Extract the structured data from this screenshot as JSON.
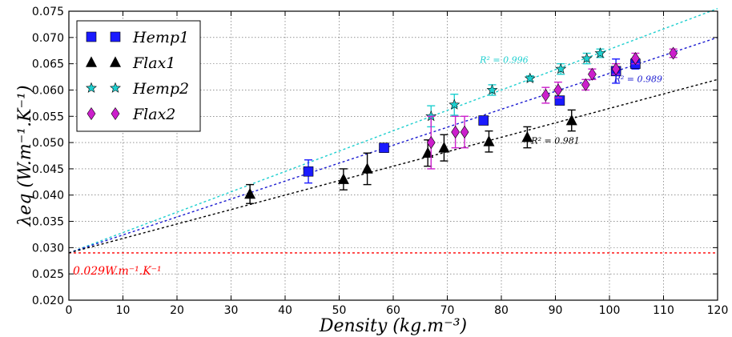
{
  "chart_data": {
    "type": "scatter",
    "xlabel": "Density (kg.m⁻³)",
    "ylabel": "λeq (W.m⁻¹.K⁻¹)",
    "xlim": [
      0,
      120
    ],
    "ylim": [
      0.02,
      0.075
    ],
    "x_ticks": [
      "0",
      "10",
      "20",
      "30",
      "40",
      "50",
      "60",
      "70",
      "80",
      "90",
      "100",
      "110",
      "120"
    ],
    "y_ticks": [
      "0.020",
      "0.025",
      "0.030",
      "0.035",
      "0.040",
      "0.045",
      "0.050",
      "0.055",
      "0.060",
      "0.065",
      "0.070",
      "0.075"
    ],
    "grid": true,
    "legend_position": "top-left",
    "series": [
      {
        "name": "Hemp1",
        "marker": "square",
        "color": "#1a1aff",
        "points": [
          {
            "x": 44.3,
            "y": 0.0445,
            "err": 0.0022
          },
          {
            "x": 58.3,
            "y": 0.049,
            "err": 0.0005
          },
          {
            "x": 76.7,
            "y": 0.0542,
            "err": 0.0008
          },
          {
            "x": 90.8,
            "y": 0.058,
            "err": 0.0008
          },
          {
            "x": 101.2,
            "y": 0.0636,
            "err": 0.0023
          },
          {
            "x": 104.8,
            "y": 0.065,
            "err": 0.001
          }
        ]
      },
      {
        "name": "Flax1",
        "marker": "triangle",
        "color": "#000000",
        "points": [
          {
            "x": 33.5,
            "y": 0.0402,
            "err": 0.0018
          },
          {
            "x": 50.8,
            "y": 0.043,
            "err": 0.002
          },
          {
            "x": 55.2,
            "y": 0.045,
            "err": 0.003
          },
          {
            "x": 66.4,
            "y": 0.048,
            "err": 0.0025
          },
          {
            "x": 69.4,
            "y": 0.049,
            "err": 0.0025
          },
          {
            "x": 77.7,
            "y": 0.0502,
            "err": 0.002
          },
          {
            "x": 84.8,
            "y": 0.051,
            "err": 0.002
          },
          {
            "x": 93.0,
            "y": 0.0542,
            "err": 0.002
          }
        ]
      },
      {
        "name": "Hemp2",
        "marker": "star",
        "color": "#1ecfcf",
        "points": [
          {
            "x": 67.0,
            "y": 0.055,
            "err": 0.002
          },
          {
            "x": 71.3,
            "y": 0.0572,
            "err": 0.002
          },
          {
            "x": 78.3,
            "y": 0.06,
            "err": 0.001
          },
          {
            "x": 85.3,
            "y": 0.0622,
            "err": 0.0005
          },
          {
            "x": 91.0,
            "y": 0.064,
            "err": 0.001
          },
          {
            "x": 95.8,
            "y": 0.066,
            "err": 0.001
          },
          {
            "x": 98.3,
            "y": 0.067,
            "err": 0.0008
          }
        ]
      },
      {
        "name": "Flax2",
        "marker": "diamond",
        "color": "#cc1fcc",
        "points": [
          {
            "x": 67.0,
            "y": 0.05,
            "err": 0.005
          },
          {
            "x": 71.5,
            "y": 0.052,
            "err": 0.003
          },
          {
            "x": 73.2,
            "y": 0.052,
            "err": 0.003
          },
          {
            "x": 88.2,
            "y": 0.059,
            "err": 0.0015
          },
          {
            "x": 90.5,
            "y": 0.06,
            "err": 0.0015
          },
          {
            "x": 95.6,
            "y": 0.061,
            "err": 0.001
          },
          {
            "x": 96.8,
            "y": 0.063,
            "err": 0.001
          },
          {
            "x": 101.2,
            "y": 0.064,
            "err": 0.001
          },
          {
            "x": 104.8,
            "y": 0.066,
            "err": 0.001
          },
          {
            "x": 111.8,
            "y": 0.067,
            "err": 0.0008
          }
        ]
      }
    ],
    "fit_lines": [
      {
        "color": "#1ecfcf",
        "x0": 0,
        "y0": 0.029,
        "x1": 120,
        "y1": 0.0755,
        "label": "R² = 0.996"
      },
      {
        "color": "#1a1ad0",
        "x0": 0,
        "y0": 0.029,
        "x1": 120,
        "y1": 0.07,
        "label": "R² = 0.989"
      },
      {
        "color": "#000000",
        "x0": 0,
        "y0": 0.029,
        "x1": 120,
        "y1": 0.062,
        "label": "R² = 0.981"
      }
    ],
    "reference_line": {
      "y": 0.029,
      "color": "#ff0000",
      "label": "0.029W.m⁻¹.K⁻¹"
    }
  }
}
